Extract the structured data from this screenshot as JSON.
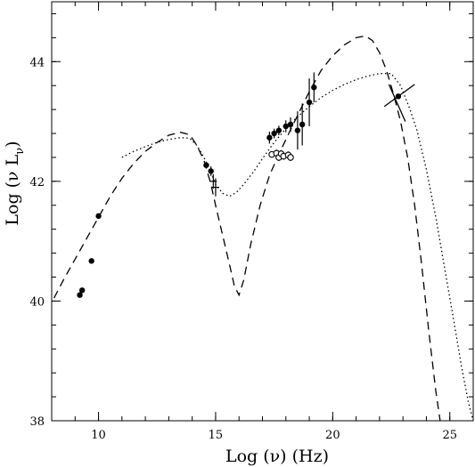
{
  "chart_data": {
    "type": "scatter",
    "title": "",
    "xlabel": "Log (ν) (Hz)",
    "ylabel_main": "Log (ν L",
    "ylabel_sub": "ν",
    "ylabel_close": ")",
    "xlim": [
      8,
      26
    ],
    "ylim": [
      38,
      45
    ],
    "x_ticks": [
      10,
      15,
      20,
      25
    ],
    "x_tick_labels": [
      "10",
      "15",
      "20",
      "25"
    ],
    "y_ticks": [
      38,
      40,
      42,
      44
    ],
    "y_tick_labels": [
      "38",
      "40",
      "42",
      "44"
    ],
    "x_minor_step": 1,
    "y_minor_step": 0.4,
    "grid": false,
    "series": [
      {
        "style": "dashed",
        "kind": "line",
        "x": [
          8.1,
          8.5,
          9.0,
          9.5,
          10.0,
          10.5,
          11.0,
          11.5,
          12.0,
          12.5,
          13.0,
          13.5,
          13.9,
          14.2,
          14.5,
          14.8,
          15.0,
          15.3,
          15.6,
          15.8,
          16.0,
          16.2,
          16.5,
          16.9,
          17.3,
          17.7,
          18.0,
          18.5,
          19.0,
          19.5,
          20.0,
          20.5,
          21.0,
          21.4,
          21.7,
          22.0,
          22.3,
          22.6,
          22.9,
          23.2,
          23.5,
          23.8,
          24.1,
          24.4,
          24.7,
          24.9
        ],
        "y": [
          40.05,
          40.35,
          40.7,
          41.05,
          41.4,
          41.75,
          42.05,
          42.3,
          42.5,
          42.65,
          42.77,
          42.82,
          42.78,
          42.6,
          42.35,
          41.95,
          41.6,
          41.1,
          40.6,
          40.25,
          40.1,
          40.35,
          40.95,
          41.6,
          42.1,
          42.45,
          42.7,
          43.1,
          43.5,
          43.85,
          44.1,
          44.28,
          44.4,
          44.43,
          44.35,
          44.15,
          43.85,
          43.45,
          43.0,
          42.4,
          41.6,
          40.6,
          39.5,
          38.5,
          37.7,
          37.3
        ],
        "color": "#000000"
      },
      {
        "style": "dotted",
        "kind": "line",
        "x": [
          11.0,
          11.5,
          12.0,
          12.5,
          13.0,
          13.5,
          13.9,
          14.2,
          14.5,
          14.8,
          15.0,
          15.3,
          15.6,
          15.9,
          16.2,
          16.6,
          17.0,
          17.5,
          18.0,
          18.5,
          19.0,
          19.5,
          20.0,
          20.5,
          21.0,
          21.5,
          22.0,
          22.5,
          22.9,
          23.3,
          23.6,
          24.0,
          24.4,
          24.8,
          25.2,
          25.5,
          25.8,
          26.0
        ],
        "y": [
          42.4,
          42.5,
          42.58,
          42.65,
          42.7,
          42.73,
          42.72,
          42.6,
          42.4,
          42.15,
          41.95,
          41.8,
          41.75,
          41.82,
          41.95,
          42.15,
          42.38,
          42.65,
          42.88,
          43.08,
          43.25,
          43.4,
          43.52,
          43.62,
          43.7,
          43.76,
          43.8,
          43.8,
          43.6,
          43.2,
          42.85,
          42.2,
          41.4,
          40.5,
          39.6,
          38.9,
          38.3,
          38.0
        ],
        "color": "#000000"
      },
      {
        "kind": "filled_points",
        "x": [
          9.2,
          9.3,
          9.7,
          10.0,
          14.6,
          14.8,
          17.3,
          17.5,
          17.7,
          18.0,
          18.2,
          18.5,
          18.7,
          19.0,
          19.2
        ],
        "y": [
          40.1,
          40.18,
          40.67,
          41.42,
          42.27,
          42.17,
          42.73,
          42.8,
          42.85,
          42.92,
          42.95,
          42.85,
          42.95,
          43.32,
          43.57
        ],
        "err_y": [
          0,
          0,
          0,
          0,
          0,
          0.08,
          0.1,
          0.08,
          0.08,
          0.1,
          0.12,
          0.32,
          0.35,
          0.4,
          0.25
        ],
        "color": "#000000"
      },
      {
        "kind": "open_points",
        "x": [
          17.4,
          17.6,
          17.7,
          17.8,
          17.9,
          18.1,
          18.2
        ],
        "y": [
          42.45,
          42.47,
          42.4,
          42.46,
          42.42,
          42.44,
          42.4
        ],
        "err_y": [
          0.05,
          0.06,
          0.06,
          0.06,
          0.06,
          0.06,
          0.06
        ],
        "color": "#000000"
      },
      {
        "kind": "cross_points",
        "x": [
          14.9,
          15.0
        ],
        "y": [
          42.0,
          41.9
        ],
        "err_y": [
          0.12,
          0.15
        ],
        "color": "#000000"
      },
      {
        "kind": "butterfly",
        "x": 22.8,
        "y": 43.42,
        "x1": 22.2,
        "y1": 43.25,
        "x2": 23.5,
        "y2": 43.62,
        "x3": 22.4,
        "y3": 43.62,
        "x4": 23.1,
        "y4": 43.0,
        "color": "#000000"
      }
    ]
  }
}
